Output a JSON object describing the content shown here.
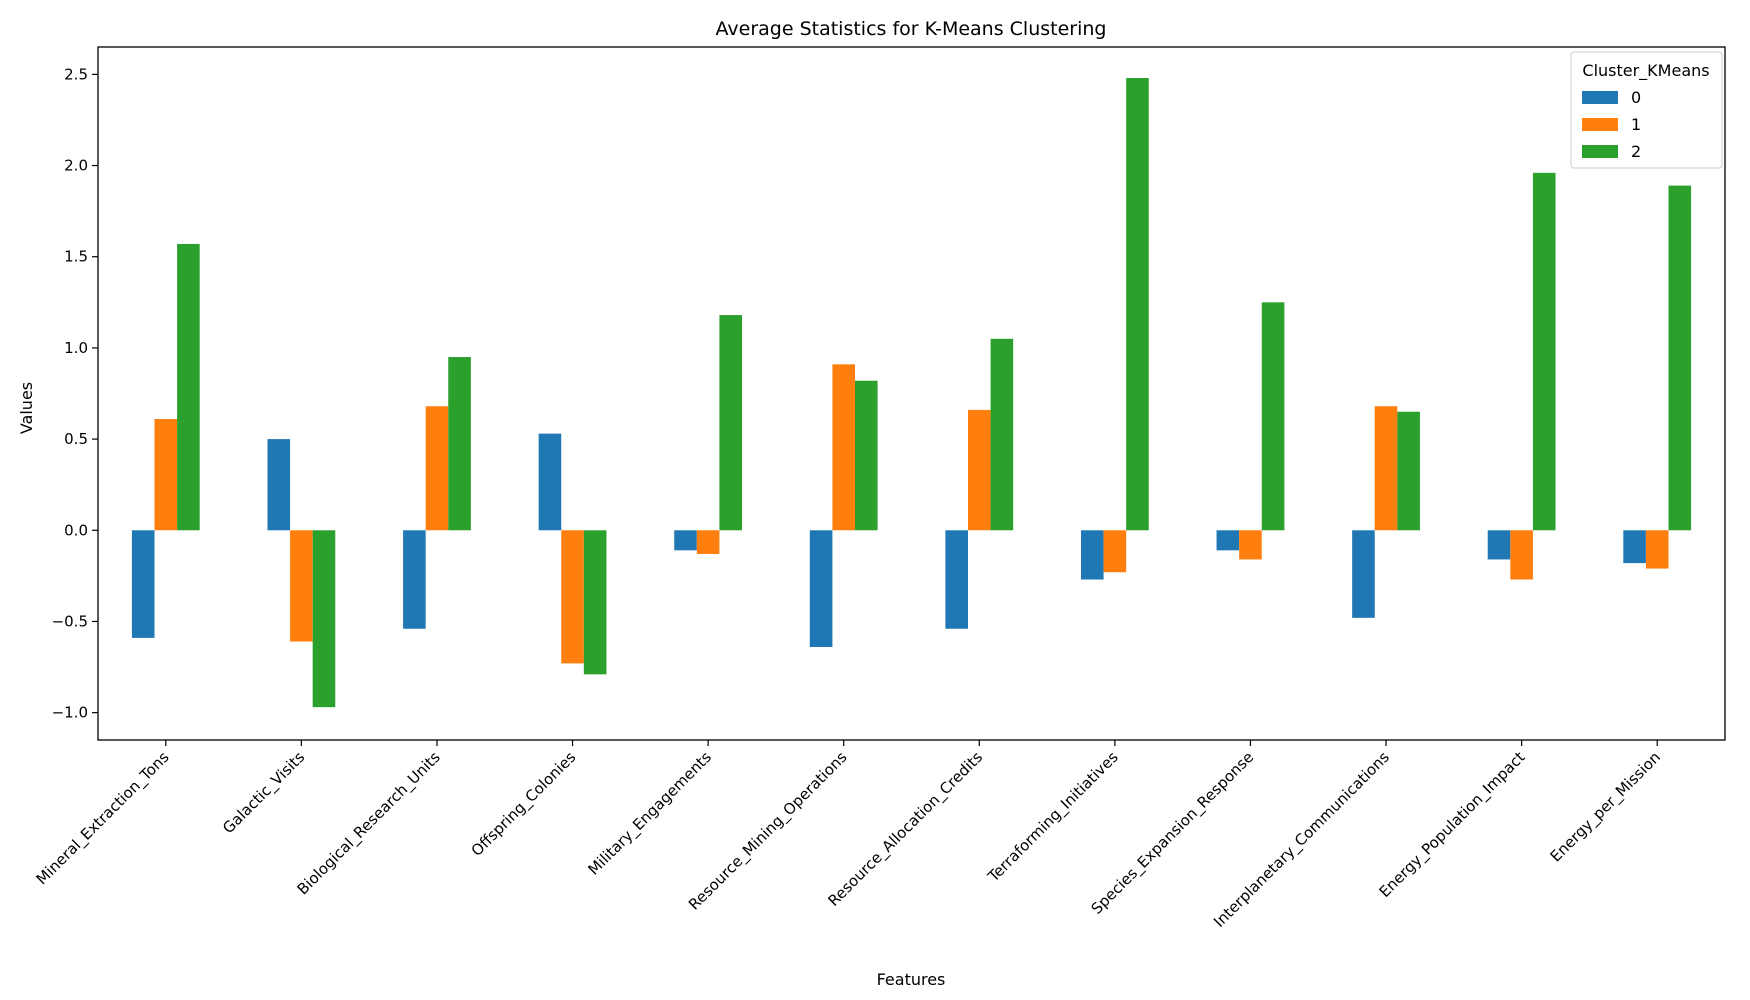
{
  "chart_data": {
    "type": "bar",
    "title": "Average Statistics for K-Means Clustering",
    "xlabel": "Features",
    "ylabel": "Values",
    "ylim": [
      -1.15,
      2.65
    ],
    "yticks": [
      -1.0,
      -0.5,
      0.0,
      0.5,
      1.0,
      1.5,
      2.0,
      2.5
    ],
    "ytick_labels": [
      "−1.0",
      "−0.5",
      "0.0",
      "0.5",
      "1.0",
      "1.5",
      "2.0",
      "2.5"
    ],
    "grid": false,
    "legend": {
      "title": "Cluster_KMeans",
      "position": "top-right"
    },
    "categories": [
      "Mineral_Extraction_Tons",
      "Galactic_Visits",
      "Biological_Research_Units",
      "Offspring_Colonies",
      "Military_Engagements",
      "Resource_Mining_Operations",
      "Resource_Allocation_Credits",
      "Terraforming_Initiatives",
      "Species_Expansion_Response",
      "Interplanetary_Communications",
      "Energy_Population_Impact",
      "Energy_per_Mission"
    ],
    "series": [
      {
        "name": "0",
        "color": "#1f77b4",
        "values": [
          -0.59,
          0.5,
          -0.54,
          0.53,
          -0.11,
          -0.64,
          -0.54,
          -0.27,
          -0.11,
          -0.48,
          -0.16,
          -0.18
        ]
      },
      {
        "name": "1",
        "color": "#ff7f0e",
        "values": [
          0.61,
          -0.61,
          0.68,
          -0.73,
          -0.13,
          0.91,
          0.66,
          -0.23,
          -0.16,
          0.68,
          -0.27,
          -0.21
        ]
      },
      {
        "name": "2",
        "color": "#2ca02c",
        "values": [
          1.57,
          -0.97,
          0.95,
          -0.79,
          1.18,
          0.82,
          1.05,
          2.48,
          1.25,
          0.65,
          1.96,
          1.89
        ]
      }
    ]
  }
}
